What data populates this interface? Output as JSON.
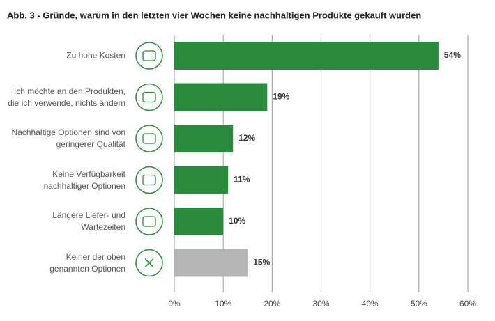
{
  "chart_data": {
    "type": "barh",
    "title": "Abb. 3 - Gründe, warum in den letzten vier Wochen keine nachhaltigen Produkte gekauft wurden",
    "categories": [
      "Zu hohe Kosten",
      "Ich möchte an den Produkten,\ndie ich verwende, nichts ändern",
      "Nachhaltige Optionen sind von\ngeringerer Qualität",
      "Keine Verfügbarkeit\nnachhaltiger Optionen",
      "Längere Liefer- und\nWartezeiten",
      "Keiner der oben\ngenannten Optionen"
    ],
    "values": [
      54,
      19,
      12,
      11,
      10,
      15
    ],
    "value_labels": [
      "54%",
      "19%",
      "12%",
      "11%",
      "10%",
      "15%"
    ],
    "colors": [
      "#2b8a3e",
      "#2b8a3e",
      "#2b8a3e",
      "#2b8a3e",
      "#2b8a3e",
      "#b5b5b5"
    ],
    "xlim": [
      0,
      60
    ],
    "xticks": [
      {
        "value": 0,
        "label": "0%"
      },
      {
        "value": 10,
        "label": "10%"
      },
      {
        "value": 20,
        "label": "20%"
      },
      {
        "value": 30,
        "label": "30%"
      },
      {
        "value": 40,
        "label": "40%"
      },
      {
        "value": 50,
        "label": "50%"
      },
      {
        "value": 60,
        "label": "60%"
      }
    ],
    "grid": true
  }
}
